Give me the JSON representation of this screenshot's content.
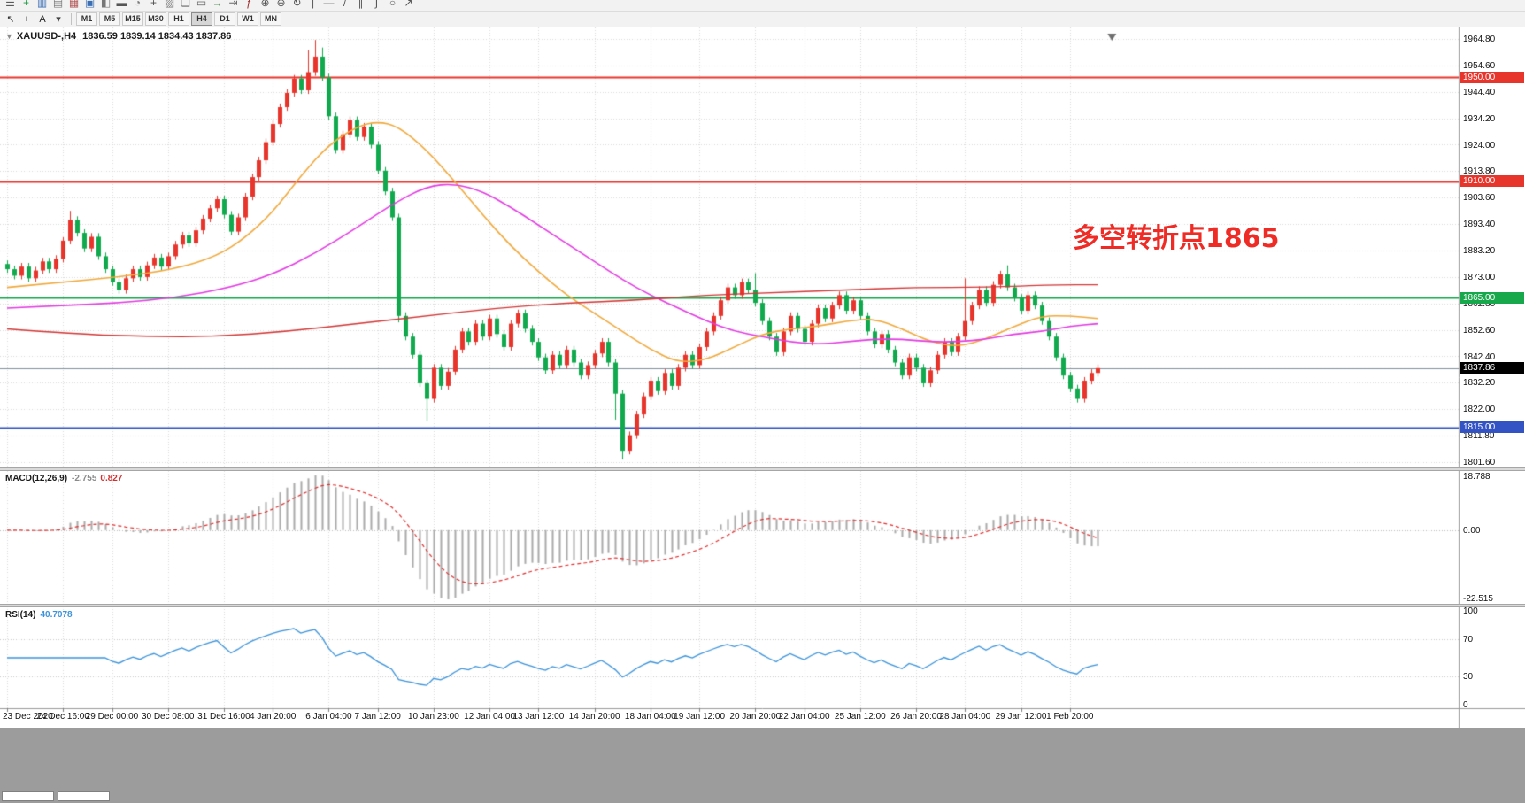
{
  "toolbar": {
    "row1_icons": [
      {
        "name": "menu-icon",
        "glyph": "☰",
        "color": "#5a5a5a"
      },
      {
        "name": "new-order-icon",
        "glyph": "+",
        "color": "#1f9d44"
      },
      {
        "name": "charts-icon",
        "glyph": "▥",
        "color": "#3b6fb5"
      },
      {
        "name": "profiles-icon",
        "glyph": "▤",
        "color": "#777777"
      },
      {
        "name": "market-watch-icon",
        "glyph": "▦",
        "color": "#b05050"
      },
      {
        "name": "data-window-icon",
        "glyph": "▣",
        "color": "#3b6fb5"
      },
      {
        "name": "navigator-icon",
        "glyph": "◧",
        "color": "#777777"
      },
      {
        "name": "terminal-icon",
        "glyph": "▬",
        "color": "#555555"
      },
      {
        "name": "strategy-tester-icon",
        "glyph": "◔",
        "color": "#777777"
      },
      {
        "name": "new-chart-icon",
        "glyph": "+",
        "color": "#4a4a4a"
      },
      {
        "name": "templates-icon",
        "glyph": "▨",
        "color": "#777777"
      },
      {
        "name": "cascade-windows-icon",
        "glyph": "❏",
        "color": "#666666"
      },
      {
        "name": "tile-windows-icon",
        "glyph": "▭",
        "color": "#666666"
      },
      {
        "name": "autoscroll-icon",
        "glyph": "→",
        "color": "#2e7d32"
      },
      {
        "name": "chart-shift-icon",
        "glyph": "⇥",
        "color": "#666666"
      },
      {
        "name": "indicators-icon",
        "glyph": "ƒ",
        "color": "#a03030"
      },
      {
        "name": "zoom-in-icon",
        "glyph": "⊕",
        "color": "#555555"
      },
      {
        "name": "zoom-out-icon",
        "glyph": "⊖",
        "color": "#555555"
      },
      {
        "name": "refresh-icon",
        "glyph": "↻",
        "color": "#555555"
      },
      {
        "name": "vertical-line-icon",
        "glyph": "|",
        "color": "#555555"
      },
      {
        "name": "horizontal-line-icon",
        "glyph": "—",
        "color": "#555555"
      },
      {
        "name": "trendline-icon",
        "glyph": "/",
        "color": "#555555"
      },
      {
        "name": "channel-icon",
        "glyph": "∥",
        "color": "#555555"
      },
      {
        "name": "fibonacci-icon",
        "glyph": "∫",
        "color": "#555555"
      },
      {
        "name": "shapes-icon",
        "glyph": "○",
        "color": "#555555"
      },
      {
        "name": "arrow-objects-icon",
        "glyph": "↗",
        "color": "#555555"
      }
    ],
    "row2_icons": [
      {
        "name": "cursor-icon",
        "glyph": "↖",
        "color": "#333333"
      },
      {
        "name": "crosshair-icon",
        "glyph": "+",
        "color": "#333333"
      },
      {
        "name": "text-label-icon",
        "glyph": "A",
        "color": "#222222"
      },
      {
        "name": "objects-dropdown-icon",
        "glyph": "▾",
        "color": "#444444"
      }
    ],
    "timeframes": {
      "items": [
        "M1",
        "M5",
        "M15",
        "M30",
        "H1",
        "H4",
        "D1",
        "W1",
        "MN"
      ],
      "active": "H4"
    }
  },
  "chart": {
    "caret": "▼",
    "title_symbol": "XAUUSD-,H4",
    "title_ohlc": "1836.59 1839.14 1834.43 1837.86"
  },
  "chart_data": {
    "type": "candlestick",
    "symbol": "XAUUSD-",
    "timeframe": "H4",
    "price_axis": {
      "max": 1964.8,
      "min": 1801.6,
      "ticks": [
        "1964.80",
        "1954.60",
        "1944.40",
        "1934.20",
        "1924.00",
        "1913.80",
        "1903.60",
        "1893.40",
        "1883.20",
        "1873.00",
        "1862.80",
        "1852.60",
        "1842.40",
        "1832.20",
        "1822.00",
        "1811.80",
        "1801.60"
      ]
    },
    "colors": {
      "up": "#e8352c",
      "down": "#11a94d",
      "grid": "#dadada",
      "macd_hist": "#ababab",
      "macd_signal": "#e03030",
      "rsi_line": "#3b93da"
    },
    "candles": {
      "first_open": 1878.0,
      "default_wick": 1.4,
      "closes": [
        1876.0,
        1873.5,
        1877.0,
        1872.5,
        1875.5,
        1879.0,
        1876.0,
        1880.0,
        1887.0,
        1895.0,
        1890.0,
        1884.0,
        1888.5,
        1881.0,
        1876.0,
        1871.0,
        1868.0,
        1872.5,
        1876.0,
        1873.0,
        1877.5,
        1880.5,
        1877.0,
        1881.0,
        1885.5,
        1889.0,
        1886.0,
        1891.0,
        1895.5,
        1899.5,
        1903.0,
        1897.0,
        1890.5,
        1896.0,
        1904.0,
        1911.5,
        1918.0,
        1925.0,
        1932.0,
        1938.5,
        1944.0,
        1949.5,
        1945.0,
        1952.0,
        1958.0,
        1950.0,
        1935.0,
        1922.0,
        1928.0,
        1933.5,
        1927.0,
        1931.0,
        1924.0,
        1914.0,
        1906.0,
        1896.0,
        1858.0,
        1850.0,
        1843.0,
        1832.0,
        1826.0,
        1838.0,
        1831.0,
        1836.5,
        1845.0,
        1852.0,
        1848.0,
        1855.0,
        1850.0,
        1857.0,
        1851.0,
        1846.0,
        1855.0,
        1859.0,
        1853.0,
        1848.0,
        1842.0,
        1837.0,
        1843.0,
        1839.0,
        1845.0,
        1840.0,
        1835.0,
        1839.0,
        1843.5,
        1848.0,
        1840.0,
        1828.0,
        1806.0,
        1812.0,
        1820.0,
        1827.0,
        1833.0,
        1829.0,
        1836.0,
        1831.0,
        1838.0,
        1843.0,
        1839.0,
        1846.0,
        1852.0,
        1858.0,
        1864.0,
        1869.0,
        1866.0,
        1871.0,
        1868.0,
        1863.0,
        1856.0,
        1850.0,
        1844.0,
        1852.0,
        1858.0,
        1853.0,
        1848.0,
        1855.0,
        1861.0,
        1857.0,
        1862.0,
        1866.0,
        1860.0,
        1864.0,
        1858.0,
        1852.0,
        1847.0,
        1851.0,
        1845.0,
        1840.0,
        1835.0,
        1842.0,
        1838.0,
        1832.0,
        1837.0,
        1843.0,
        1848.0,
        1844.0,
        1850.0,
        1856.0,
        1862.0,
        1868.0,
        1863.0,
        1870.0,
        1874.0,
        1869.0,
        1865.0,
        1860.0,
        1866.0,
        1862.0,
        1856.0,
        1850.0,
        1842.0,
        1835.0,
        1830.0,
        1826.0,
        1833.0,
        1836.0,
        1837.86
      ],
      "wick_overrides": {
        "9": {
          "h": 1898.5
        },
        "43": {
          "h": 1960.5
        },
        "44": {
          "h": 1964.4
        },
        "45": {
          "h": 1961.5
        },
        "56": {
          "l": 1855.5
        },
        "60": {
          "l": 1817.5
        },
        "87": {
          "l": 1818.0
        },
        "88": {
          "l": 1802.6
        },
        "107": {
          "h": 1874.5
        },
        "137": {
          "h": 1872.5
        },
        "143": {
          "h": 1877.5
        }
      }
    },
    "time_labels": [
      {
        "i": 0,
        "label": "23 Dec 2020"
      },
      {
        "i": 8,
        "label": "24 Dec 16:00"
      },
      {
        "i": 15,
        "label": "29 Dec 00:00"
      },
      {
        "i": 23,
        "label": "30 Dec 08:00"
      },
      {
        "i": 31,
        "label": "31 Dec 16:00"
      },
      {
        "i": 38,
        "label": "4 Jan 20:00"
      },
      {
        "i": 46,
        "label": "6 Jan 04:00"
      },
      {
        "i": 53,
        "label": "7 Jan 12:00"
      },
      {
        "i": 61,
        "label": "10 Jan 23:00"
      },
      {
        "i": 69,
        "label": "12 Jan 04:00"
      },
      {
        "i": 76,
        "label": "13 Jan 12:00"
      },
      {
        "i": 84,
        "label": "14 Jan 20:00"
      },
      {
        "i": 92,
        "label": "18 Jan 04:00"
      },
      {
        "i": 99,
        "label": "19 Jan 12:00"
      },
      {
        "i": 107,
        "label": "20 Jan 20:00"
      },
      {
        "i": 114,
        "label": "22 Jan 04:00"
      },
      {
        "i": 122,
        "label": "25 Jan 12:00"
      },
      {
        "i": 130,
        "label": "26 Jan 20:00"
      },
      {
        "i": 137,
        "label": "28 Jan 04:00"
      },
      {
        "i": 145,
        "label": "29 Jan 12:00"
      },
      {
        "i": 152,
        "label": "1 Feb 20:00"
      }
    ],
    "mas": [
      {
        "name": "ma-fast-orange",
        "color": "#f0a93b",
        "width": 1.6,
        "points": [
          [
            0,
            1869
          ],
          [
            8,
            1871
          ],
          [
            16,
            1873
          ],
          [
            24,
            1876
          ],
          [
            30,
            1881
          ],
          [
            34,
            1888
          ],
          [
            38,
            1898
          ],
          [
            42,
            1912
          ],
          [
            46,
            1924
          ],
          [
            50,
            1931
          ],
          [
            53,
            1933
          ],
          [
            56,
            1931
          ],
          [
            60,
            1922
          ],
          [
            64,
            1910
          ],
          [
            68,
            1897
          ],
          [
            72,
            1885
          ],
          [
            76,
            1875
          ],
          [
            80,
            1866
          ],
          [
            84,
            1859
          ],
          [
            88,
            1852
          ],
          [
            92,
            1845
          ],
          [
            96,
            1840
          ],
          [
            100,
            1841
          ],
          [
            104,
            1846
          ],
          [
            108,
            1851
          ],
          [
            112,
            1853
          ],
          [
            116,
            1854
          ],
          [
            120,
            1856
          ],
          [
            124,
            1857
          ],
          [
            128,
            1853
          ],
          [
            132,
            1848
          ],
          [
            136,
            1846
          ],
          [
            140,
            1849
          ],
          [
            144,
            1854
          ],
          [
            148,
            1858
          ],
          [
            152,
            1858
          ],
          [
            156,
            1857
          ]
        ]
      },
      {
        "name": "ma-mid-magenta",
        "color": "#e23be2",
        "width": 1.6,
        "points": [
          [
            0,
            1861
          ],
          [
            8,
            1862
          ],
          [
            16,
            1863
          ],
          [
            24,
            1865
          ],
          [
            32,
            1869
          ],
          [
            38,
            1874
          ],
          [
            44,
            1882
          ],
          [
            50,
            1892
          ],
          [
            55,
            1901
          ],
          [
            60,
            1908
          ],
          [
            64,
            1909
          ],
          [
            68,
            1906
          ],
          [
            72,
            1900
          ],
          [
            76,
            1893
          ],
          [
            80,
            1886
          ],
          [
            84,
            1879
          ],
          [
            88,
            1872
          ],
          [
            92,
            1866
          ],
          [
            96,
            1861
          ],
          [
            100,
            1856
          ],
          [
            104,
            1852
          ],
          [
            108,
            1850
          ],
          [
            112,
            1848
          ],
          [
            116,
            1847
          ],
          [
            120,
            1848
          ],
          [
            124,
            1849
          ],
          [
            128,
            1849
          ],
          [
            132,
            1848
          ],
          [
            136,
            1848
          ],
          [
            140,
            1849
          ],
          [
            144,
            1851
          ],
          [
            148,
            1852
          ],
          [
            152,
            1854
          ],
          [
            156,
            1855
          ]
        ]
      },
      {
        "name": "ma-slow-red",
        "color": "#d23535",
        "width": 1.4,
        "points": [
          [
            0,
            1853
          ],
          [
            10,
            1851
          ],
          [
            20,
            1850
          ],
          [
            30,
            1850
          ],
          [
            40,
            1852
          ],
          [
            50,
            1855
          ],
          [
            60,
            1858
          ],
          [
            70,
            1861
          ],
          [
            80,
            1863
          ],
          [
            90,
            1864
          ],
          [
            100,
            1866
          ],
          [
            110,
            1867
          ],
          [
            120,
            1868
          ],
          [
            130,
            1869
          ],
          [
            140,
            1869
          ],
          [
            150,
            1870
          ],
          [
            156,
            1870
          ]
        ]
      }
    ],
    "hlines": [
      {
        "price": 1950.0,
        "label": "1950.00",
        "color": "#e8352c"
      },
      {
        "price": 1910.0,
        "label": "1910.00",
        "color": "#e8352c"
      },
      {
        "price": 1865.0,
        "label": "1865.00",
        "color": "#18a84c"
      },
      {
        "price": 1815.0,
        "label": "1815.00",
        "color": "#3353c4"
      }
    ],
    "current_price": {
      "value": 1837.86,
      "label": "1837.86",
      "line_color": "#7f8f9f",
      "badge_color": "#000000"
    },
    "annotation": {
      "text": "多空转折点1865",
      "color": "#ee2b24"
    },
    "macd": {
      "name": "MACD(12,26,9)",
      "value_main": "-2.755",
      "value_signal": "0.827",
      "fast": 12,
      "slow": 26,
      "signal": 9,
      "axis_labels": [
        "18.788",
        "0.00",
        "-22.515"
      ]
    },
    "rsi": {
      "name": "RSI(14)",
      "value": "40.7078",
      "period": 14,
      "levels": [
        70,
        30
      ],
      "axis_labels": [
        "100",
        "70",
        "30",
        "0"
      ]
    }
  }
}
